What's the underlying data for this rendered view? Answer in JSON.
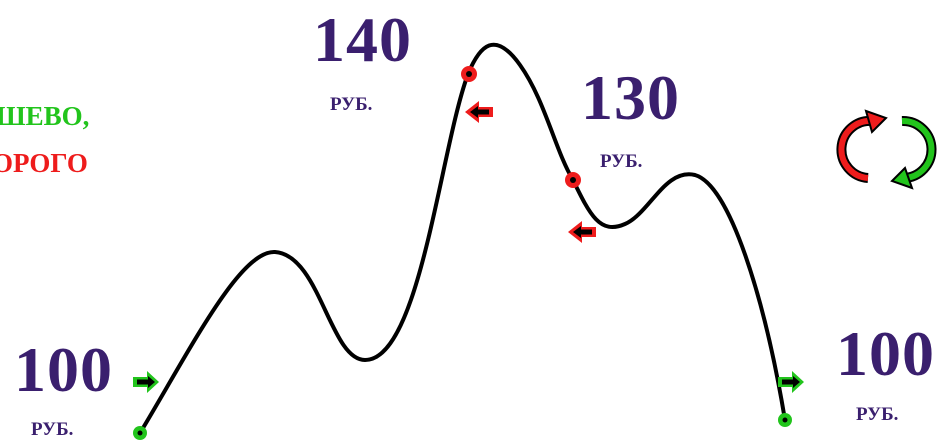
{
  "caption": {
    "line1": "ШЕВО,",
    "line2": "ОРОГО",
    "line1_color": "#22c41c",
    "line2_color": "#ee1c1c"
  },
  "prices": [
    {
      "value": "100",
      "unit": "РУБ.",
      "state": "cheap"
    },
    {
      "value": "140",
      "unit": "РУБ.",
      "state": "expensive"
    },
    {
      "value": "130",
      "unit": "РУБ.",
      "state": "expensive"
    },
    {
      "value": "100",
      "unit": "РУБ.",
      "state": "cheap"
    }
  ],
  "colors": {
    "text": "#3a1f6e",
    "cheap": "#22c41c",
    "expensive": "#ee1c1c",
    "curve": "#000000"
  },
  "icons": {
    "price_marker": "circle-dot-icon",
    "direction": "arrow-icon",
    "cycle": "refresh-cycle-icon"
  }
}
